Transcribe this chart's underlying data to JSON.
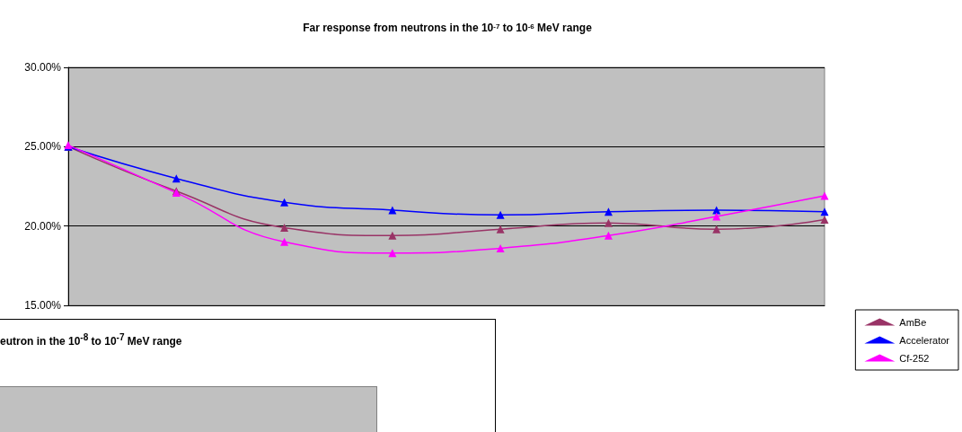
{
  "chart_data": [
    {
      "type": "line",
      "title": "Far response from neutrons in the 10$^{-7}$ to 10$^{-6}$ MeV range",
      "categories": [
        null,
        null,
        null,
        null,
        null,
        null,
        null,
        null
      ],
      "series": [
        {
          "name": "AmBe",
          "color": "#993366",
          "values": [
            25.0,
            22.2,
            19.9,
            19.4,
            19.8,
            20.2,
            19.8,
            20.4
          ]
        },
        {
          "name": "Accelerator",
          "color": "#0000ff",
          "values": [
            25.0,
            23.0,
            21.5,
            21.0,
            20.7,
            20.9,
            21.0,
            20.9
          ]
        },
        {
          "name": "Cf-252",
          "color": "#ff00ff",
          "values": [
            25.1,
            22.1,
            19.0,
            18.3,
            18.6,
            19.4,
            20.6,
            21.9
          ]
        }
      ],
      "ylim": [
        15,
        30
      ],
      "yticks": [
        {
          "value": 15,
          "label": "15.00%"
        },
        {
          "value": 20,
          "label": "20.00%"
        },
        {
          "value": 25,
          "label": "25.00%"
        },
        {
          "value": 30,
          "label": "30.00%"
        }
      ],
      "grid": "y",
      "legend": "right",
      "marker": "triangle",
      "line_style": "solid"
    },
    {
      "type": "other",
      "title": "eutron in the 10$^{-8}$ to 10$^{-7}$ MeV range"
    }
  ]
}
